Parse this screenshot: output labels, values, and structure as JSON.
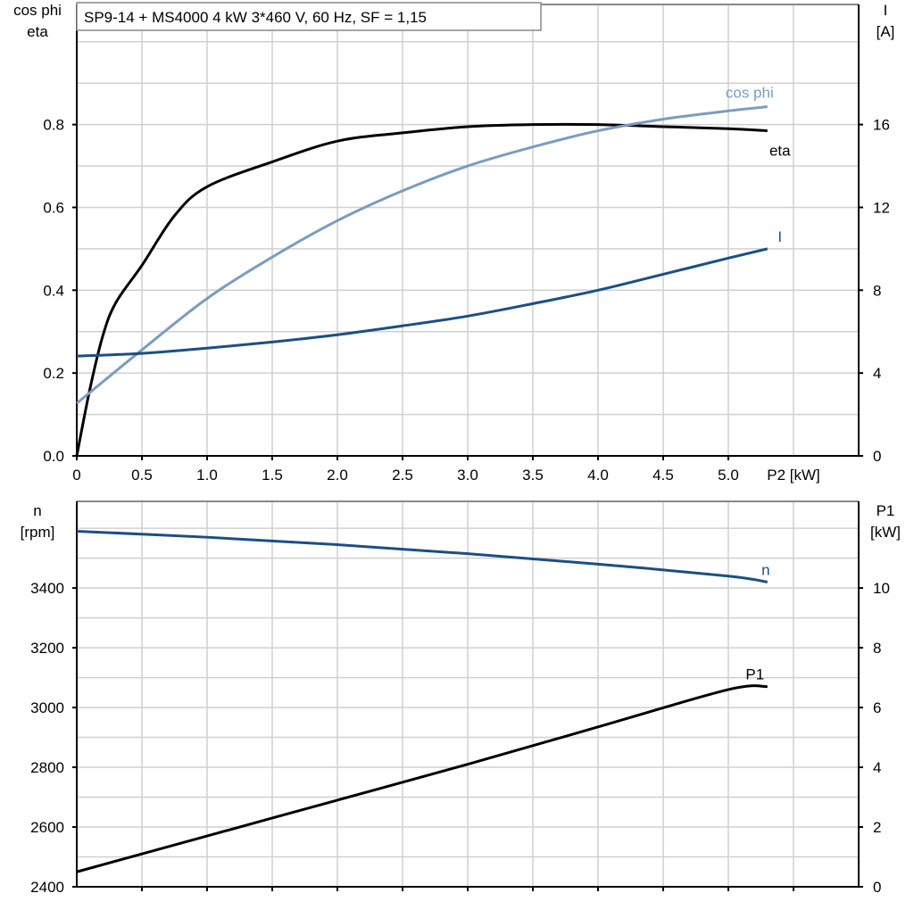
{
  "title": "SP9-14 + MS4000   4 kW   3*460 V, 60 Hz, SF = 1,15",
  "colors": {
    "eta": "#000000",
    "cos_phi": "#7a9cc0",
    "I": "#1a4f86",
    "n": "#1a4f86",
    "P1": "#000000",
    "grid": "#d0d0d0"
  },
  "chart_data": [
    {
      "type": "line",
      "xlabel": "P2 [kW]",
      "xlim": [
        0,
        6
      ],
      "xticks": [
        "0",
        "0.5",
        "1.0",
        "1.5",
        "2.0",
        "2.5",
        "3.0",
        "3.5",
        "4.0",
        "4.5",
        "5.0"
      ],
      "ylabel_left": [
        "cos phi",
        "eta"
      ],
      "ylim_left": [
        0,
        1.09
      ],
      "yticks_left": [
        "0.0",
        "0.2",
        "0.4",
        "0.6",
        "0.8"
      ],
      "ylabel_right": [
        "I",
        "[A]"
      ],
      "ylim_right": [
        0,
        21.8
      ],
      "yticks_right": [
        "0",
        "4",
        "8",
        "12",
        "16"
      ],
      "grid": true,
      "series": [
        {
          "name": "eta",
          "axis": "left",
          "x": [
            0,
            0.1,
            0.2,
            0.3,
            0.5,
            0.75,
            1.0,
            1.5,
            2.0,
            2.5,
            3.0,
            3.5,
            4.0,
            4.5,
            5.0,
            5.3
          ],
          "y": [
            0,
            0.16,
            0.29,
            0.37,
            0.46,
            0.58,
            0.65,
            0.71,
            0.76,
            0.78,
            0.795,
            0.8,
            0.8,
            0.795,
            0.79,
            0.785
          ]
        },
        {
          "name": "cos phi",
          "axis": "left",
          "x": [
            0,
            0.5,
            1.0,
            1.5,
            2.0,
            2.5,
            3.0,
            3.5,
            4.0,
            4.5,
            5.0,
            5.3
          ],
          "y": [
            0.127,
            0.256,
            0.38,
            0.48,
            0.568,
            0.64,
            0.7,
            0.746,
            0.785,
            0.813,
            0.833,
            0.843
          ]
        },
        {
          "name": "I",
          "axis": "right",
          "x": [
            0,
            0.5,
            1.0,
            1.5,
            2.0,
            2.5,
            3.0,
            3.5,
            4.0,
            4.5,
            5.0,
            5.3
          ],
          "y": [
            4.82,
            4.95,
            5.2,
            5.5,
            5.85,
            6.28,
            6.75,
            7.35,
            8.0,
            8.77,
            9.55,
            10.0
          ]
        }
      ]
    },
    {
      "type": "line",
      "xlim": [
        0,
        6
      ],
      "ylabel_left": [
        "n",
        "[rpm]"
      ],
      "ylim_left": [
        2400,
        3690
      ],
      "yticks_left": [
        "2400",
        "2600",
        "2800",
        "3000",
        "3200",
        "3400"
      ],
      "ylabel_right": [
        "P1",
        "[kW]"
      ],
      "ylim_right": [
        0,
        12.9
      ],
      "yticks_right": [
        "0",
        "2",
        "4",
        "6",
        "8",
        "10"
      ],
      "grid": true,
      "series": [
        {
          "name": "n",
          "axis": "left",
          "x": [
            0,
            1.0,
            2.0,
            3.0,
            4.0,
            5.0,
            5.3
          ],
          "y": [
            3590,
            3570,
            3545,
            3515,
            3480,
            3440,
            3420
          ]
        },
        {
          "name": "P1",
          "axis": "right",
          "x": [
            0,
            1.0,
            2.0,
            3.0,
            4.0,
            5.0,
            5.3
          ],
          "y": [
            0.5,
            1.7,
            2.9,
            4.1,
            5.35,
            6.6,
            6.7
          ]
        }
      ]
    }
  ]
}
